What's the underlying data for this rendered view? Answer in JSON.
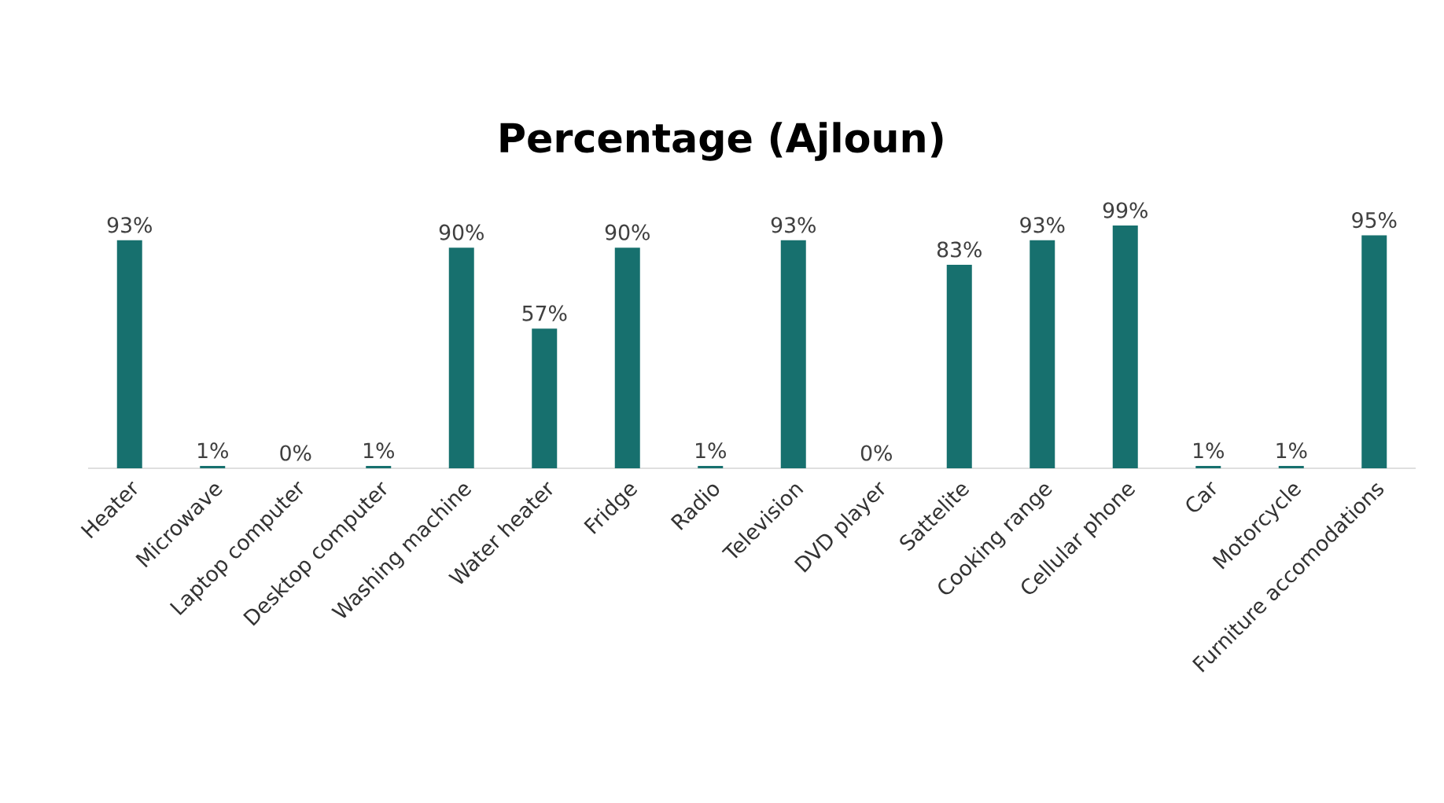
{
  "chart_data": {
    "type": "bar",
    "title": "Percentage (Ajloun)",
    "categories": [
      "Heater",
      "Microwave",
      "Laptop computer",
      "Desktop computer",
      "Washing machine",
      "Water heater",
      "Fridge",
      "Radio",
      "Television",
      "DVD player",
      "Sattelite",
      "Cooking range",
      "Cellular phone",
      "Car",
      "Motorcycle",
      "Furniture accomodations"
    ],
    "values": [
      93,
      1,
      0,
      1,
      90,
      57,
      90,
      1,
      93,
      0,
      83,
      93,
      99,
      1,
      1,
      95
    ],
    "value_labels": [
      "93%",
      "1%",
      "0%",
      "1%",
      "90%",
      "57%",
      "90%",
      "1%",
      "93%",
      "0%",
      "83%",
      "93%",
      "99%",
      "1%",
      "1%",
      "95%"
    ],
    "color": "#17706e"
  }
}
